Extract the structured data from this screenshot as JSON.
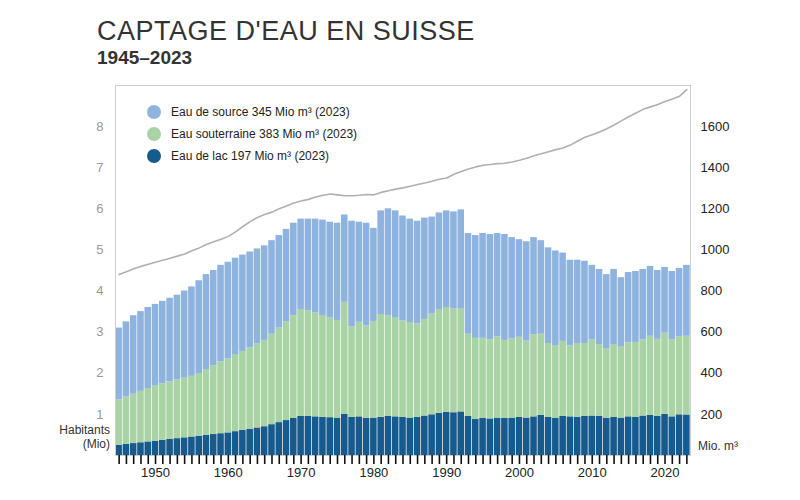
{
  "chart_data": {
    "type": "bar",
    "stacked": true,
    "title": "CAPTAGE D'EAU EN SUISSE",
    "subtitle": "1945–2023",
    "x": [
      1945,
      1946,
      1947,
      1948,
      1949,
      1950,
      1951,
      1952,
      1953,
      1954,
      1955,
      1956,
      1957,
      1958,
      1959,
      1960,
      1961,
      1962,
      1963,
      1964,
      1965,
      1966,
      1967,
      1968,
      1969,
      1970,
      1971,
      1972,
      1973,
      1974,
      1975,
      1976,
      1977,
      1978,
      1979,
      1980,
      1981,
      1982,
      1983,
      1984,
      1985,
      1986,
      1987,
      1988,
      1989,
      1990,
      1991,
      1992,
      1993,
      1994,
      1995,
      1996,
      1997,
      1998,
      1999,
      2000,
      2001,
      2002,
      2003,
      2004,
      2005,
      2006,
      2007,
      2008,
      2009,
      2010,
      2011,
      2012,
      2013,
      2014,
      2015,
      2016,
      2017,
      2018,
      2019,
      2020,
      2021,
      2022,
      2023
    ],
    "xlim": [
      1944.5,
      2023.5
    ],
    "xticks": [
      1950,
      1960,
      1970,
      1980,
      1990,
      2000,
      2010,
      2020
    ],
    "y_label": "Habitants (Mio)",
    "ylim": [
      0,
      9
    ],
    "yticks": [
      1,
      2,
      3,
      4,
      5,
      6,
      7,
      8
    ],
    "y2_label": "Mio. m³",
    "y2lim": [
      0,
      1800
    ],
    "y2ticks": [
      200,
      400,
      600,
      800,
      1000,
      1200,
      1400,
      1600
    ],
    "grid": false,
    "legend": "top-left",
    "series": [
      {
        "name": "Eau de source 345 Mio m³ (2023)",
        "color": "#8fb3df",
        "axis": "y2",
        "values": [
          350,
          366,
          382,
          388,
          394,
          395,
          401,
          407,
          413,
          424,
          435,
          451,
          462,
          463,
          469,
          470,
          472,
          469,
          466,
          463,
          460,
          455,
          450,
          450,
          450,
          440,
          445,
          457,
          464,
          466,
          473,
          425,
          515,
          487,
          500,
          453,
          504,
          520,
          522,
          510,
          503,
          499,
          493,
          472,
          470,
          470,
          472,
          483,
          490,
          500,
          510,
          512,
          503,
          515,
          493,
          475,
          483,
          472,
          455,
          465,
          460,
          430,
          417,
          405,
          400,
          363,
          365,
          360,
          365,
          338,
          342,
          345,
          343,
          340,
          335,
          320,
          332,
          332,
          345
        ]
      },
      {
        "name": "Eau souterraine 383 Mio m³ (2023)",
        "color": "#a9d3a4",
        "axis": "y2",
        "values": [
          220,
          230,
          240,
          250,
          260,
          270,
          275,
          280,
          285,
          290,
          295,
          305,
          320,
          335,
          350,
          360,
          372,
          384,
          396,
          408,
          420,
          440,
          460,
          480,
          500,
          520,
          515,
          505,
          495,
          485,
          475,
          545,
          440,
          460,
          450,
          470,
          500,
          490,
          480,
          470,
          465,
          455,
          470,
          490,
          505,
          510,
          505,
          500,
          400,
          395,
          390,
          385,
          395,
          380,
          385,
          390,
          375,
          400,
          395,
          360,
          355,
          365,
          345,
          360,
          355,
          370,
          350,
          340,
          355,
          345,
          360,
          365,
          370,
          385,
          375,
          395,
          375,
          380,
          383
        ]
      },
      {
        "name": "Eau de lac 197 Mio m³ (2023)",
        "color": "#175a8e",
        "axis": "y2",
        "values": [
          50,
          54,
          58,
          62,
          66,
          70,
          74,
          78,
          82,
          86,
          90,
          94,
          98,
          102,
          106,
          110,
          116,
          122,
          128,
          134,
          140,
          150,
          160,
          170,
          180,
          190,
          190,
          188,
          186,
          184,
          182,
          200,
          185,
          188,
          180,
          182,
          186,
          190,
          188,
          185,
          182,
          186,
          192,
          198,
          205,
          210,
          208,
          212,
          190,
          175,
          180,
          178,
          182,
          180,
          182,
          185,
          182,
          188,
          195,
          185,
          180,
          190,
          188,
          185,
          190,
          192,
          190,
          180,
          185,
          182,
          188,
          185,
          192,
          195,
          190,
          200,
          188,
          198,
          197
        ]
      },
      {
        "type": "line",
        "color": "#b0b0b0",
        "axis": "y",
        "values": [
          4.4,
          4.47,
          4.54,
          4.6,
          4.65,
          4.7,
          4.75,
          4.8,
          4.85,
          4.9,
          4.98,
          5.05,
          5.13,
          5.2,
          5.26,
          5.33,
          5.44,
          5.57,
          5.69,
          5.79,
          5.86,
          5.92,
          6,
          6.07,
          6.14,
          6.19,
          6.23,
          6.29,
          6.33,
          6.36,
          6.34,
          6.32,
          6.32,
          6.33,
          6.35,
          6.34,
          6.4,
          6.44,
          6.48,
          6.51,
          6.55,
          6.59,
          6.63,
          6.67,
          6.72,
          6.75,
          6.84,
          6.91,
          6.97,
          7.02,
          7.06,
          7.08,
          7.1,
          7.11,
          7.14,
          7.18,
          7.23,
          7.29,
          7.34,
          7.39,
          7.44,
          7.48,
          7.55,
          7.65,
          7.74,
          7.8,
          7.87,
          7.95,
          8.04,
          8.14,
          8.24,
          8.33,
          8.42,
          8.48,
          8.54,
          8.61,
          8.67,
          8.74,
          8.9
        ]
      }
    ]
  }
}
